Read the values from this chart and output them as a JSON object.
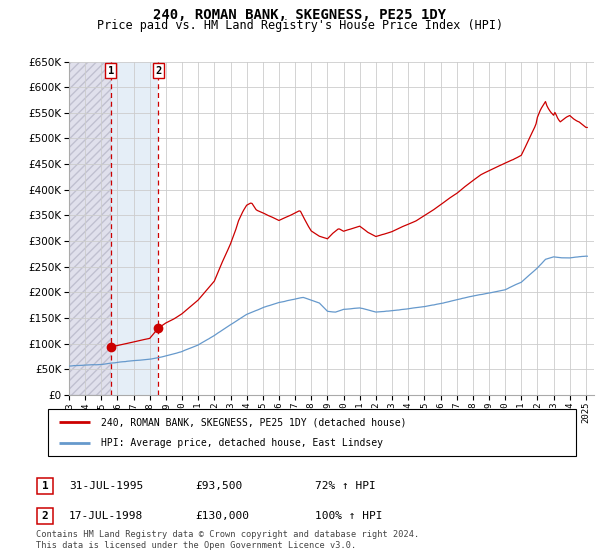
{
  "title": "240, ROMAN BANK, SKEGNESS, PE25 1DY",
  "subtitle": "Price paid vs. HM Land Registry's House Price Index (HPI)",
  "ylim": [
    0,
    650000
  ],
  "yticks": [
    0,
    50000,
    100000,
    150000,
    200000,
    250000,
    300000,
    350000,
    400000,
    450000,
    500000,
    550000,
    600000,
    650000
  ],
  "hpi_color": "#6699cc",
  "price_color": "#cc0000",
  "sale1_date_x": 1995.58,
  "sale1_price": 93500,
  "sale1_label": "1",
  "sale2_date_x": 1998.54,
  "sale2_price": 130000,
  "sale2_label": "2",
  "legend_line1": "240, ROMAN BANK, SKEGNESS, PE25 1DY (detached house)",
  "legend_line2": "HPI: Average price, detached house, East Lindsey",
  "table_row1": [
    "1",
    "31-JUL-1995",
    "£93,500",
    "72% ↑ HPI"
  ],
  "table_row2": [
    "2",
    "17-JUL-1998",
    "£130,000",
    "100% ↑ HPI"
  ],
  "footnote": "Contains HM Land Registry data © Crown copyright and database right 2024.\nThis data is licensed under the Open Government Licence v3.0.",
  "xmin": 1993,
  "xmax": 2025.5,
  "xtick_years": [
    1993,
    1994,
    1995,
    1996,
    1997,
    1998,
    1999,
    2000,
    2001,
    2002,
    2003,
    2004,
    2005,
    2006,
    2007,
    2008,
    2009,
    2010,
    2011,
    2012,
    2013,
    2014,
    2015,
    2016,
    2017,
    2018,
    2019,
    2020,
    2021,
    2022,
    2023,
    2024,
    2025
  ]
}
